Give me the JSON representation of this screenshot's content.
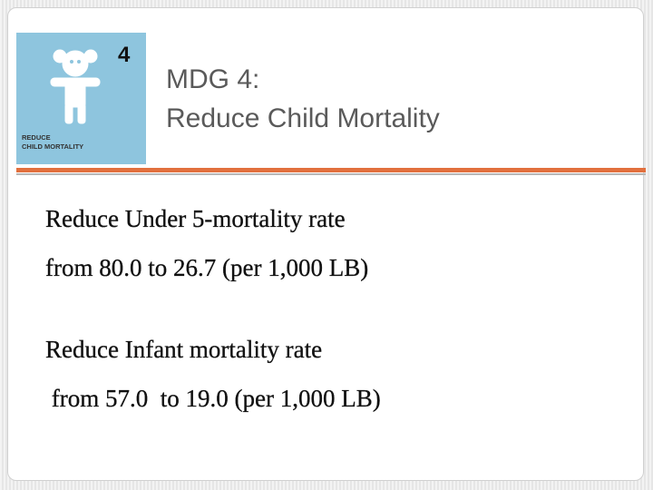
{
  "header": {
    "badge_number": "4",
    "badge_caption": [
      "REDUCE",
      "CHILD MORTALITY"
    ],
    "title": [
      "MDG 4:",
      "Reduce Child Mortality"
    ]
  },
  "body": {
    "paragraphs": [
      [
        "Reduce Under 5-mortality rate",
        "from 80.0 to 26.7 (per 1,000 LB)"
      ],
      [
        "Reduce Infant mortality rate",
        " from 57.0  to 19.0 (per 1,000 LB)"
      ]
    ]
  }
}
